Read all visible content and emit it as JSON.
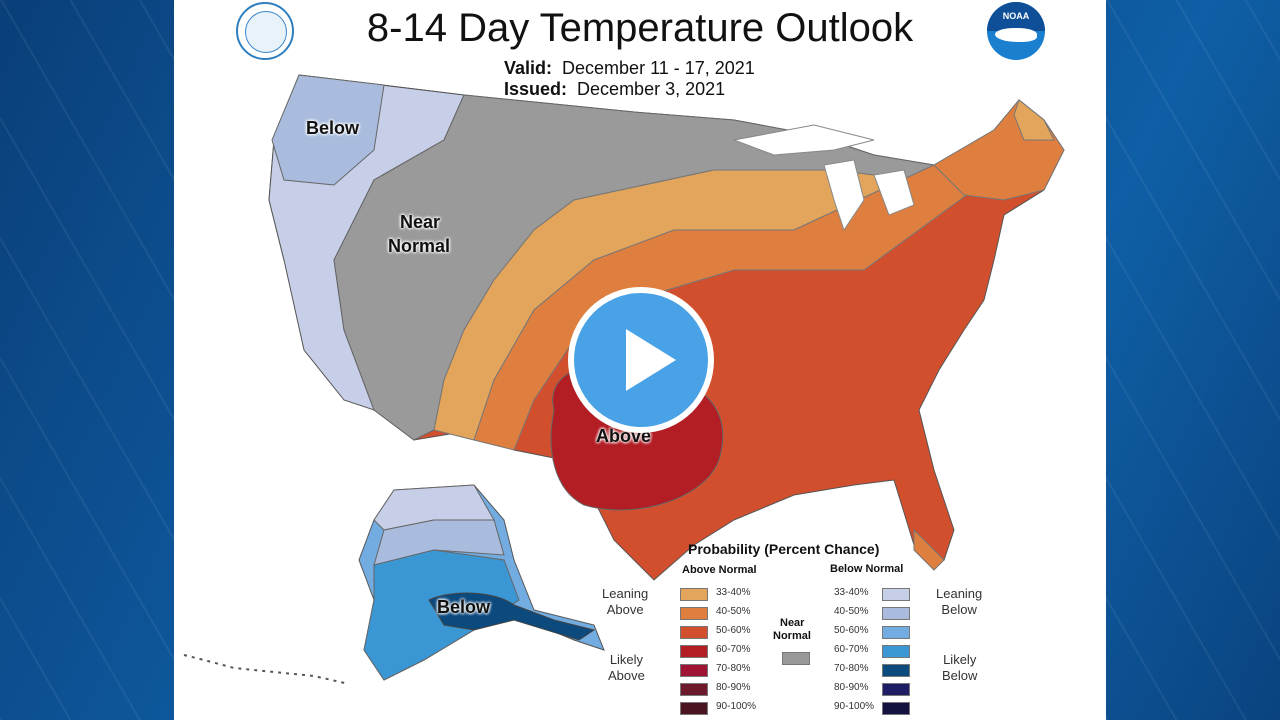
{
  "title": "8-14 Day Temperature Outlook",
  "valid_label": "Valid:",
  "valid_value": "December 11 - 17, 2021",
  "issued_label": "Issued:",
  "issued_value": "December 3, 2021",
  "map_labels": {
    "below_nw": "Below",
    "near_normal_line1": "Near",
    "near_normal_line2": "Normal",
    "above": "Above",
    "below_ak": "Below"
  },
  "legend": {
    "title": "Probability (Percent Chance)",
    "above_header": "Above Normal",
    "below_header": "Below Normal",
    "near_header_line1": "Near",
    "near_header_line2": "Normal",
    "leaning_above_1": "Leaning",
    "leaning_above_2": "Above",
    "likely_above_1": "Likely",
    "likely_above_2": "Above",
    "leaning_below_1": "Leaning",
    "leaning_below_2": "Below",
    "likely_below_1": "Likely",
    "likely_below_2": "Below",
    "above_rows": [
      {
        "label": "33-40%",
        "color": "#e3a55c"
      },
      {
        "label": "40-50%",
        "color": "#de7e3f"
      },
      {
        "label": "50-60%",
        "color": "#d24f2d"
      },
      {
        "label": "60-70%",
        "color": "#b31d24"
      },
      {
        "label": "70-80%",
        "color": "#a01433"
      },
      {
        "label": "80-90%",
        "color": "#6c1a2b"
      },
      {
        "label": "90-100%",
        "color": "#4a1420"
      }
    ],
    "below_rows": [
      {
        "label": "33-40%",
        "color": "#c7cfe8"
      },
      {
        "label": "40-50%",
        "color": "#a9bcde"
      },
      {
        "label": "50-60%",
        "color": "#72ace0"
      },
      {
        "label": "60-70%",
        "color": "#3b96d4"
      },
      {
        "label": "70-80%",
        "color": "#0c4a7e"
      },
      {
        "label": "80-90%",
        "color": "#1f1d63"
      },
      {
        "label": "90-100%",
        "color": "#14123f"
      }
    ],
    "near_color": "#999999"
  },
  "colors": {
    "near_normal": "#9a9a9a",
    "accent_play": "#4aa2e6"
  }
}
